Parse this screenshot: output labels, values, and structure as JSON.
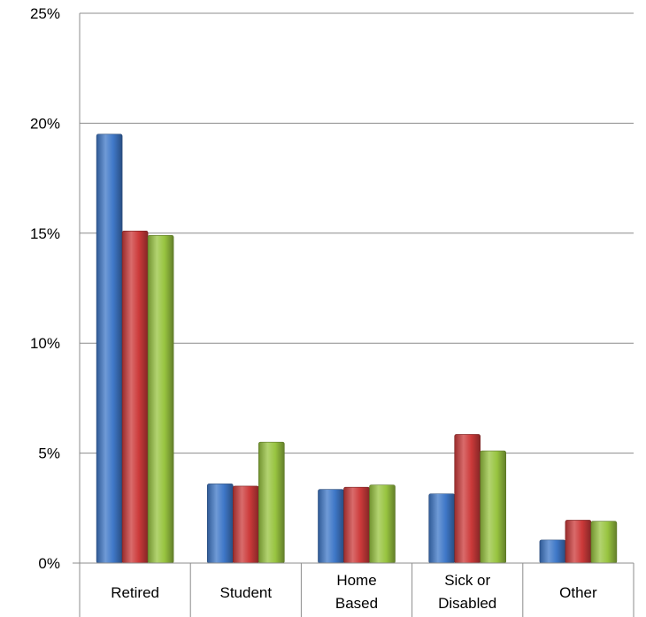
{
  "chart_data": {
    "type": "bar",
    "categories": [
      "Retired",
      "Student",
      "Home Based",
      "Sick or Disabled",
      "Other"
    ],
    "category_label_lines": [
      [
        "Retired"
      ],
      [
        "Student"
      ],
      [
        "Home",
        "Based"
      ],
      [
        "Sick or",
        "Disabled"
      ],
      [
        "Other"
      ]
    ],
    "series": [
      {
        "values": [
          19.5,
          3.6,
          3.35,
          3.15,
          1.05
        ],
        "color": "#3f78c8"
      },
      {
        "values": [
          15.1,
          3.5,
          3.45,
          5.85,
          1.95
        ],
        "color": "#cc3a3a"
      },
      {
        "values": [
          14.9,
          5.5,
          3.55,
          5.1,
          1.9
        ],
        "color": "#98c440"
      }
    ],
    "ylim": [
      0,
      25
    ],
    "yticks": [
      0,
      5,
      10,
      15,
      20,
      25
    ],
    "ytick_labels": [
      "0%",
      "5%",
      "10%",
      "15%",
      "20%",
      "25%"
    ],
    "title": "",
    "xlabel": "",
    "ylabel": "",
    "grid": true,
    "legend": "none"
  }
}
